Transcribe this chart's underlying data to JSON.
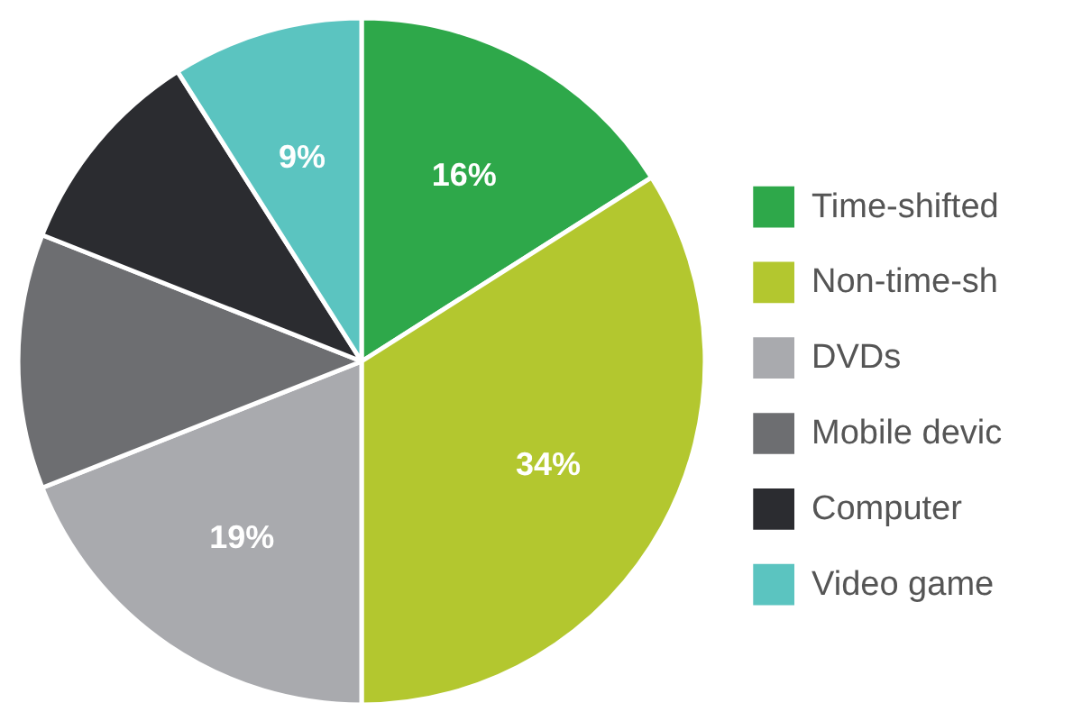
{
  "chart_data": {
    "type": "pie",
    "categories": [
      "Time-shifted",
      "Non-time-sh",
      "DVDs",
      "Mobile devic",
      "Computer",
      "Video game"
    ],
    "values": [
      16,
      34,
      19,
      12,
      10,
      9
    ],
    "colors": [
      "#2ea84a",
      "#b3c72f",
      "#a9aaae",
      "#6d6e71",
      "#2b2c30",
      "#5bc4c0"
    ],
    "value_labels": [
      "16%",
      "34%",
      "19%",
      null,
      null,
      "9%"
    ],
    "legend": "right"
  }
}
